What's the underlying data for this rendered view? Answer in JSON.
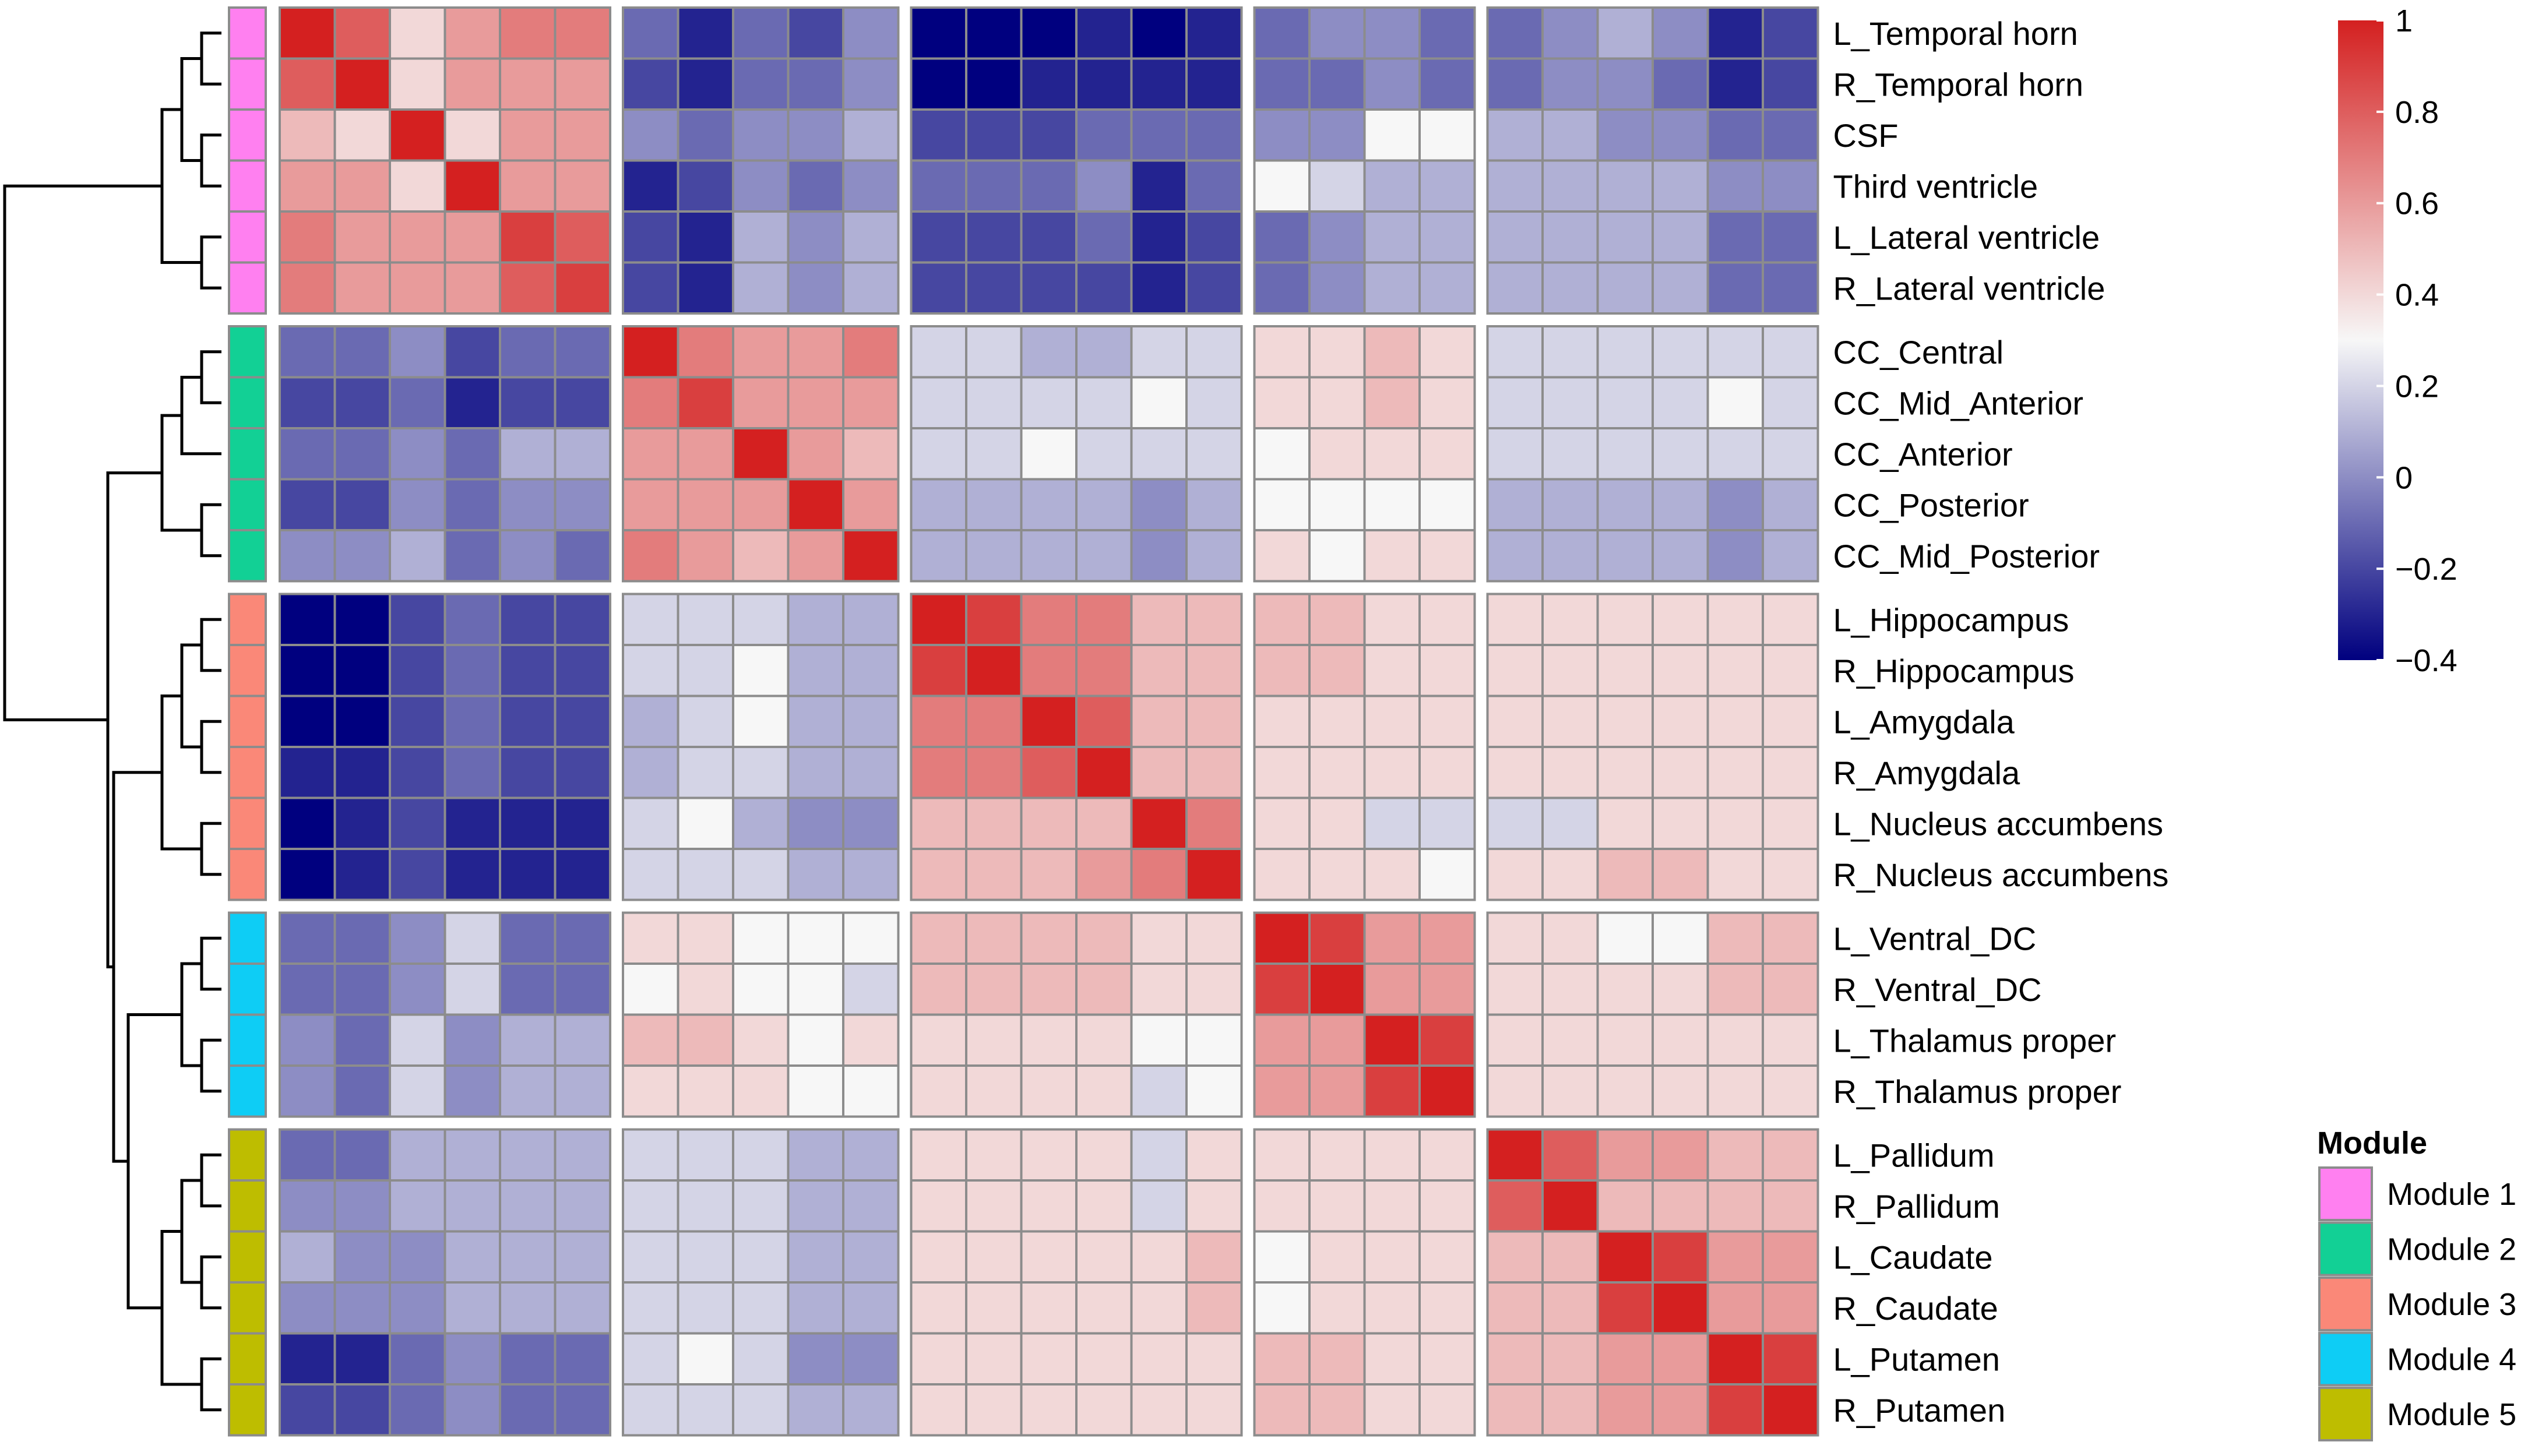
{
  "chart_data": {
    "type": "heatmap",
    "title": "",
    "row_labels": [
      "L_Temporal horn",
      "R_Temporal horn",
      "CSF",
      "Third ventricle",
      "L_Lateral ventricle",
      "R_Lateral ventricle",
      "CC_Central",
      "CC_Mid_Anterior",
      "CC_Anterior",
      "CC_Posterior",
      "CC_Mid_Posterior",
      "L_Hippocampus",
      "R_Hippocampus",
      "L_Amygdala",
      "R_Amygdala",
      "L_Nucleus accumbens",
      "R_Nucleus accumbens",
      "L_Ventral_DC",
      "R_Ventral_DC",
      "L_Thalamus proper",
      "R_Thalamus proper",
      "L_Pallidum",
      "R_Pallidum",
      "L_Caudate",
      "R_Caudate",
      "L_Putamen",
      "R_Putamen"
    ],
    "module_of_row": [
      1,
      1,
      1,
      1,
      1,
      1,
      2,
      2,
      2,
      2,
      2,
      3,
      3,
      3,
      3,
      3,
      3,
      4,
      4,
      4,
      4,
      5,
      5,
      5,
      5,
      5,
      5
    ],
    "module_sizes": [
      6,
      5,
      6,
      4,
      6
    ],
    "values": [
      [
        1,
        0.8,
        0.4,
        0.6,
        0.7,
        0.7,
        -0.1,
        -0.3,
        -0.1,
        -0.2,
        0.0,
        -0.4,
        -0.4,
        -0.4,
        -0.3,
        -0.4,
        -0.3,
        -0.1,
        0.0,
        0.0,
        -0.1,
        -0.1,
        0.0,
        0.1,
        0.0,
        -0.3,
        -0.2
      ],
      [
        0.8,
        1,
        0.4,
        0.6,
        0.6,
        0.6,
        -0.2,
        -0.3,
        -0.1,
        -0.1,
        0.0,
        -0.4,
        -0.4,
        -0.3,
        -0.3,
        -0.3,
        -0.3,
        -0.1,
        -0.1,
        0.0,
        -0.1,
        -0.1,
        0.0,
        0.0,
        -0.1,
        -0.3,
        -0.2
      ],
      [
        0.5,
        0.4,
        1,
        0.4,
        0.6,
        0.6,
        0.0,
        -0.1,
        0.0,
        0.0,
        0.1,
        -0.2,
        -0.2,
        -0.2,
        -0.1,
        -0.1,
        -0.1,
        0.0,
        0.0,
        0.3,
        0.3,
        0.1,
        0.1,
        0.0,
        0.0,
        -0.1,
        -0.1
      ],
      [
        0.6,
        0.6,
        0.4,
        1,
        0.6,
        0.6,
        -0.3,
        -0.2,
        0.0,
        -0.1,
        0.0,
        -0.1,
        -0.1,
        -0.1,
        0.0,
        -0.3,
        -0.1,
        0.3,
        0.2,
        0.1,
        0.1,
        0.1,
        0.1,
        0.1,
        0.1,
        0.0,
        0.0
      ],
      [
        0.7,
        0.6,
        0.6,
        0.6,
        0.9,
        0.8,
        -0.2,
        -0.3,
        0.1,
        0.0,
        0.1,
        -0.2,
        -0.2,
        -0.2,
        -0.1,
        -0.3,
        -0.2,
        -0.1,
        0.0,
        0.1,
        0.1,
        0.1,
        0.1,
        0.1,
        0.1,
        -0.1,
        -0.1
      ],
      [
        0.7,
        0.6,
        0.6,
        0.6,
        0.8,
        0.9,
        -0.2,
        -0.3,
        0.1,
        0.0,
        0.1,
        -0.2,
        -0.2,
        -0.2,
        -0.2,
        -0.3,
        -0.2,
        -0.1,
        0.0,
        0.1,
        0.1,
        0.1,
        0.1,
        0.1,
        0.1,
        -0.1,
        -0.1
      ],
      [
        -0.1,
        -0.1,
        0.0,
        -0.2,
        -0.1,
        -0.1,
        1,
        0.7,
        0.6,
        0.6,
        0.7,
        0.2,
        0.2,
        0.1,
        0.1,
        0.2,
        0.2,
        0.4,
        0.4,
        0.5,
        0.4,
        0.2,
        0.2,
        0.2,
        0.2,
        0.2,
        0.2
      ],
      [
        -0.2,
        -0.2,
        -0.1,
        -0.3,
        -0.2,
        -0.2,
        0.7,
        0.9,
        0.6,
        0.6,
        0.6,
        0.2,
        0.2,
        0.2,
        0.2,
        0.3,
        0.2,
        0.4,
        0.4,
        0.5,
        0.4,
        0.2,
        0.2,
        0.2,
        0.2,
        0.3,
        0.2
      ],
      [
        -0.1,
        -0.1,
        0.0,
        -0.1,
        0.1,
        0.1,
        0.6,
        0.6,
        1,
        0.6,
        0.5,
        0.2,
        0.2,
        0.3,
        0.2,
        0.2,
        0.2,
        0.3,
        0.4,
        0.4,
        0.4,
        0.2,
        0.2,
        0.2,
        0.2,
        0.2,
        0.2
      ],
      [
        -0.2,
        -0.2,
        0.0,
        -0.1,
        0.0,
        0.0,
        0.6,
        0.6,
        0.6,
        1,
        0.6,
        0.1,
        0.1,
        0.1,
        0.1,
        0.0,
        0.1,
        0.3,
        0.3,
        0.3,
        0.3,
        0.1,
        0.1,
        0.1,
        0.1,
        0.0,
        0.1
      ],
      [
        0.0,
        0.0,
        0.1,
        -0.1,
        0.0,
        -0.1,
        0.7,
        0.6,
        0.5,
        0.6,
        1,
        0.1,
        0.1,
        0.1,
        0.1,
        0.0,
        0.1,
        0.4,
        0.3,
        0.4,
        0.4,
        0.1,
        0.1,
        0.1,
        0.1,
        0.0,
        0.1
      ],
      [
        -0.4,
        -0.4,
        -0.2,
        -0.1,
        -0.2,
        -0.2,
        0.2,
        0.2,
        0.2,
        0.1,
        0.1,
        1,
        0.9,
        0.7,
        0.7,
        0.5,
        0.5,
        0.5,
        0.5,
        0.4,
        0.4,
        0.4,
        0.4,
        0.4,
        0.4,
        0.4,
        0.4
      ],
      [
        -0.4,
        -0.4,
        -0.2,
        -0.1,
        -0.2,
        -0.2,
        0.2,
        0.2,
        0.3,
        0.1,
        0.1,
        0.9,
        1,
        0.7,
        0.7,
        0.5,
        0.5,
        0.5,
        0.5,
        0.4,
        0.4,
        0.4,
        0.4,
        0.4,
        0.4,
        0.4,
        0.4
      ],
      [
        -0.4,
        -0.4,
        -0.2,
        -0.1,
        -0.2,
        -0.2,
        0.1,
        0.2,
        0.3,
        0.1,
        0.1,
        0.7,
        0.7,
        1,
        0.8,
        0.5,
        0.5,
        0.4,
        0.4,
        0.4,
        0.4,
        0.4,
        0.4,
        0.4,
        0.4,
        0.4,
        0.4
      ],
      [
        -0.3,
        -0.3,
        -0.2,
        -0.1,
        -0.2,
        -0.2,
        0.1,
        0.2,
        0.2,
        0.1,
        0.1,
        0.7,
        0.7,
        0.8,
        1,
        0.5,
        0.5,
        0.4,
        0.4,
        0.4,
        0.4,
        0.4,
        0.4,
        0.4,
        0.4,
        0.4,
        0.4
      ],
      [
        -0.4,
        -0.3,
        -0.2,
        -0.3,
        -0.3,
        -0.3,
        0.2,
        0.3,
        0.1,
        0.0,
        0.0,
        0.5,
        0.5,
        0.5,
        0.5,
        1,
        0.7,
        0.4,
        0.4,
        0.2,
        0.2,
        0.2,
        0.2,
        0.4,
        0.4,
        0.4,
        0.4
      ],
      [
        -0.4,
        -0.3,
        -0.2,
        -0.3,
        -0.3,
        -0.3,
        0.2,
        0.2,
        0.2,
        0.1,
        0.1,
        0.5,
        0.5,
        0.5,
        0.6,
        0.7,
        1,
        0.4,
        0.4,
        0.4,
        0.3,
        0.4,
        0.4,
        0.5,
        0.5,
        0.4,
        0.4
      ],
      [
        -0.1,
        -0.1,
        0.0,
        0.2,
        -0.1,
        -0.1,
        0.4,
        0.4,
        0.3,
        0.3,
        0.3,
        0.5,
        0.5,
        0.5,
        0.5,
        0.4,
        0.4,
        1,
        0.9,
        0.6,
        0.6,
        0.4,
        0.4,
        0.3,
        0.3,
        0.5,
        0.5
      ],
      [
        -0.1,
        -0.1,
        0.0,
        0.2,
        -0.1,
        -0.1,
        0.3,
        0.4,
        0.3,
        0.3,
        0.2,
        0.5,
        0.5,
        0.5,
        0.5,
        0.4,
        0.4,
        0.9,
        1,
        0.6,
        0.6,
        0.4,
        0.4,
        0.4,
        0.4,
        0.5,
        0.5
      ],
      [
        0.0,
        -0.1,
        0.2,
        0.0,
        0.1,
        0.1,
        0.5,
        0.5,
        0.4,
        0.3,
        0.4,
        0.4,
        0.4,
        0.4,
        0.4,
        0.3,
        0.3,
        0.6,
        0.6,
        1,
        0.9,
        0.4,
        0.4,
        0.4,
        0.4,
        0.4,
        0.4
      ],
      [
        0.0,
        -0.1,
        0.2,
        0.0,
        0.1,
        0.1,
        0.4,
        0.4,
        0.4,
        0.3,
        0.3,
        0.4,
        0.4,
        0.4,
        0.4,
        0.2,
        0.3,
        0.6,
        0.6,
        0.9,
        1,
        0.4,
        0.4,
        0.4,
        0.4,
        0.4,
        0.4
      ],
      [
        -0.1,
        -0.1,
        0.1,
        0.1,
        0.1,
        0.1,
        0.2,
        0.2,
        0.2,
        0.1,
        0.1,
        0.4,
        0.4,
        0.4,
        0.4,
        0.2,
        0.4,
        0.4,
        0.4,
        0.4,
        0.4,
        1,
        0.8,
        0.6,
        0.6,
        0.5,
        0.5
      ],
      [
        0.0,
        0.0,
        0.1,
        0.1,
        0.1,
        0.1,
        0.2,
        0.2,
        0.2,
        0.1,
        0.1,
        0.4,
        0.4,
        0.4,
        0.4,
        0.2,
        0.4,
        0.4,
        0.4,
        0.4,
        0.4,
        0.8,
        1,
        0.5,
        0.5,
        0.5,
        0.5
      ],
      [
        0.1,
        0.0,
        0.0,
        0.1,
        0.1,
        0.1,
        0.2,
        0.2,
        0.2,
        0.1,
        0.1,
        0.4,
        0.4,
        0.4,
        0.4,
        0.4,
        0.5,
        0.3,
        0.4,
        0.4,
        0.4,
        0.5,
        0.5,
        1,
        0.9,
        0.6,
        0.6
      ],
      [
        0.0,
        0.0,
        0.0,
        0.1,
        0.1,
        0.1,
        0.2,
        0.2,
        0.2,
        0.1,
        0.1,
        0.4,
        0.4,
        0.4,
        0.4,
        0.4,
        0.5,
        0.3,
        0.4,
        0.4,
        0.4,
        0.5,
        0.5,
        0.9,
        1,
        0.6,
        0.6
      ],
      [
        -0.3,
        -0.3,
        -0.1,
        0.0,
        -0.1,
        -0.1,
        0.2,
        0.3,
        0.2,
        0.0,
        0.0,
        0.4,
        0.4,
        0.4,
        0.4,
        0.4,
        0.4,
        0.5,
        0.5,
        0.4,
        0.4,
        0.5,
        0.5,
        0.6,
        0.6,
        1,
        0.9
      ],
      [
        -0.2,
        -0.2,
        -0.1,
        0.0,
        -0.1,
        -0.1,
        0.2,
        0.2,
        0.2,
        0.1,
        0.1,
        0.4,
        0.4,
        0.4,
        0.4,
        0.4,
        0.4,
        0.5,
        0.5,
        0.4,
        0.4,
        0.5,
        0.5,
        0.6,
        0.6,
        0.9,
        1
      ]
    ],
    "color_scale": {
      "range": [
        -0.4,
        1
      ],
      "stops": [
        {
          "value": -0.4,
          "color": "#00007f"
        },
        {
          "value": 0.3,
          "color": "#f7f7f7"
        },
        {
          "value": 1.0,
          "color": "#d42020"
        }
      ],
      "tick_labels": [
        "1",
        "0.8",
        "0.6",
        "0.4",
        "0.2",
        "0",
        "−0.2",
        "−0.4"
      ],
      "tick_values": [
        1,
        0.8,
        0.6,
        0.4,
        0.2,
        0,
        -0.2,
        -0.4
      ]
    },
    "legend": {
      "title": "Module",
      "items": [
        {
          "label": "Module 1",
          "color": "#ff80f0"
        },
        {
          "label": "Module 2",
          "color": "#12d095"
        },
        {
          "label": "Module 3",
          "color": "#fa8878"
        },
        {
          "label": "Module 4",
          "color": "#0ecdf5"
        },
        {
          "label": "Module 5",
          "color": "#bebd00"
        }
      ]
    },
    "dendrogram": "hierarchical clustering of the 27 regions into 5 modules"
  }
}
